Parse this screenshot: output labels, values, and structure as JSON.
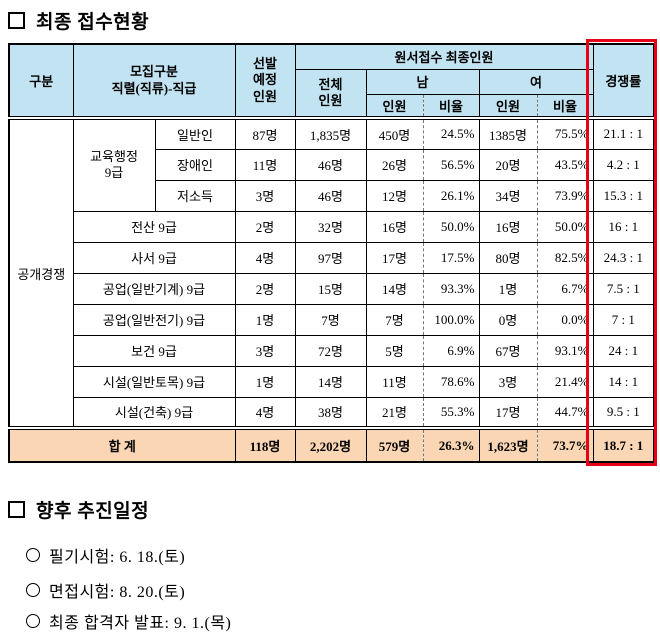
{
  "sections": {
    "status_title": "최종 접수현황",
    "schedule_title": "향후 추진일정"
  },
  "table": {
    "header": {
      "gubun": "구분",
      "recruit": "모집구분\n직렬(직류)-직급",
      "planned": "선발\n예정\n인원",
      "final_group": "원서접수 최종인원",
      "total": "전체\n인원",
      "male": "남",
      "female": "여",
      "count": "인원",
      "ratio": "비율",
      "competition": "경쟁률"
    },
    "category": "공개경쟁",
    "rows": [
      {
        "group": "교육행정\n9급",
        "sub": "일반인",
        "planned": "87명",
        "total": "1,835명",
        "male_count": "450명",
        "male_ratio": "24.5%",
        "female_count": "1385명",
        "female_ratio": "75.5%",
        "competition": "21.1 : 1"
      },
      {
        "sub": "장애인",
        "planned": "11명",
        "total": "46명",
        "male_count": "26명",
        "male_ratio": "56.5%",
        "female_count": "20명",
        "female_ratio": "43.5%",
        "competition": "4.2 : 1"
      },
      {
        "sub": "저소득",
        "planned": "3명",
        "total": "46명",
        "male_count": "12명",
        "male_ratio": "26.1%",
        "female_count": "34명",
        "female_ratio": "73.9%",
        "competition": "15.3 : 1"
      },
      {
        "job": "전산 9급",
        "planned": "2명",
        "total": "32명",
        "male_count": "16명",
        "male_ratio": "50.0%",
        "female_count": "16명",
        "female_ratio": "50.0%",
        "competition": "16 : 1"
      },
      {
        "job": "사서 9급",
        "planned": "4명",
        "total": "97명",
        "male_count": "17명",
        "male_ratio": "17.5%",
        "female_count": "80명",
        "female_ratio": "82.5%",
        "competition": "24.3 : 1"
      },
      {
        "job": "공업(일반기계) 9급",
        "planned": "2명",
        "total": "15명",
        "male_count": "14명",
        "male_ratio": "93.3%",
        "female_count": "1명",
        "female_ratio": "6.7%",
        "competition": "7.5 : 1"
      },
      {
        "job": "공업(일반전기) 9급",
        "planned": "1명",
        "total": "7명",
        "male_count": "7명",
        "male_ratio": "100.0%",
        "female_count": "0명",
        "female_ratio": "0.0%",
        "competition": "7 : 1"
      },
      {
        "job": "보건 9급",
        "planned": "3명",
        "total": "72명",
        "male_count": "5명",
        "male_ratio": "6.9%",
        "female_count": "67명",
        "female_ratio": "93.1%",
        "competition": "24 : 1"
      },
      {
        "job": "시설(일반토목) 9급",
        "planned": "1명",
        "total": "14명",
        "male_count": "11명",
        "male_ratio": "78.6%",
        "female_count": "3명",
        "female_ratio": "21.4%",
        "competition": "14 : 1"
      },
      {
        "job": "시설(건축) 9급",
        "planned": "4명",
        "total": "38명",
        "male_count": "21명",
        "male_ratio": "55.3%",
        "female_count": "17명",
        "female_ratio": "44.7%",
        "competition": "9.5 : 1"
      }
    ],
    "total_row": {
      "label": "합 계",
      "planned": "118명",
      "total": "2,202명",
      "male_count": "579명",
      "male_ratio": "26.3%",
      "female_count": "1,623명",
      "female_ratio": "73.7%",
      "competition": "18.7 : 1"
    }
  },
  "schedule": {
    "items": [
      "필기시험: 6. 18.(토)",
      "면접시험: 8. 20.(토)",
      "최종 합격자 발표: 9. 1.(목)"
    ]
  },
  "colors": {
    "header_bg": "#c2e4f2",
    "total_row_bg": "#fbd6b4",
    "highlight_box": "#e60018"
  }
}
